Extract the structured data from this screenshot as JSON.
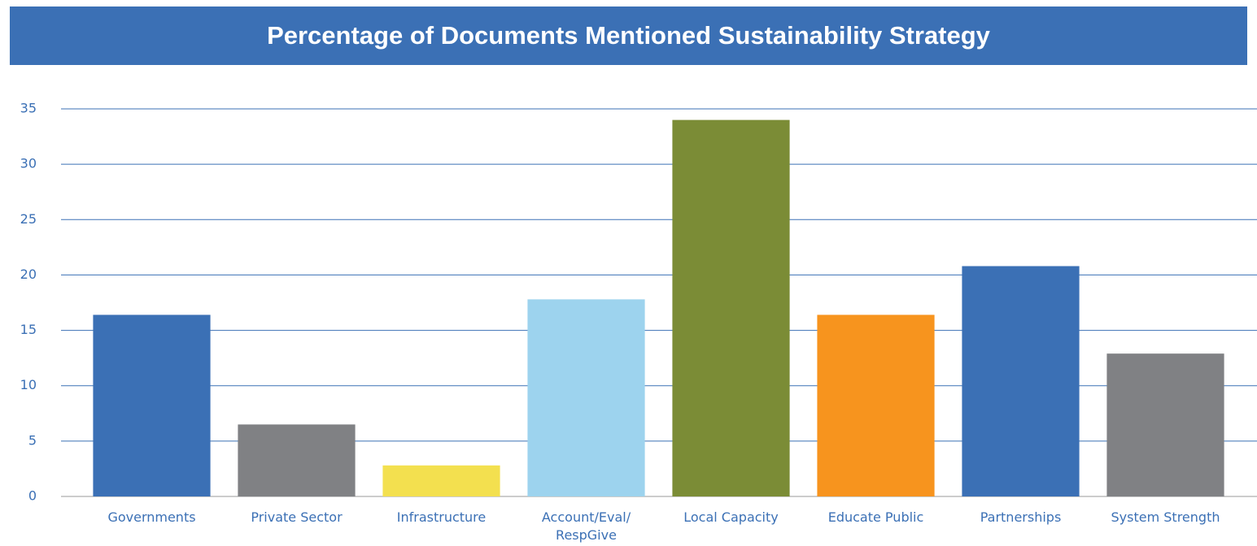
{
  "chart_data": {
    "type": "bar",
    "title": "Percentage of Documents Mentioned Sustainability Strategy",
    "categories": [
      "Governments",
      "Private Sector",
      "Infrastructure",
      "Account/Eval/ RespGive",
      "Local Capacity",
      "Educate Public",
      "Partnerships",
      "System Strength"
    ],
    "values": [
      16.4,
      6.5,
      2.8,
      17.8,
      34,
      16.4,
      20.8,
      12.9
    ],
    "colors": [
      "#3b70b5",
      "#808184",
      "#f3e04f",
      "#9dd3ee",
      "#7b8c36",
      "#f7941e",
      "#3b70b5",
      "#808184"
    ],
    "ylim": [
      0,
      35
    ],
    "yticks": [
      0,
      5,
      10,
      15,
      20,
      25,
      30,
      35
    ],
    "grid": true
  }
}
